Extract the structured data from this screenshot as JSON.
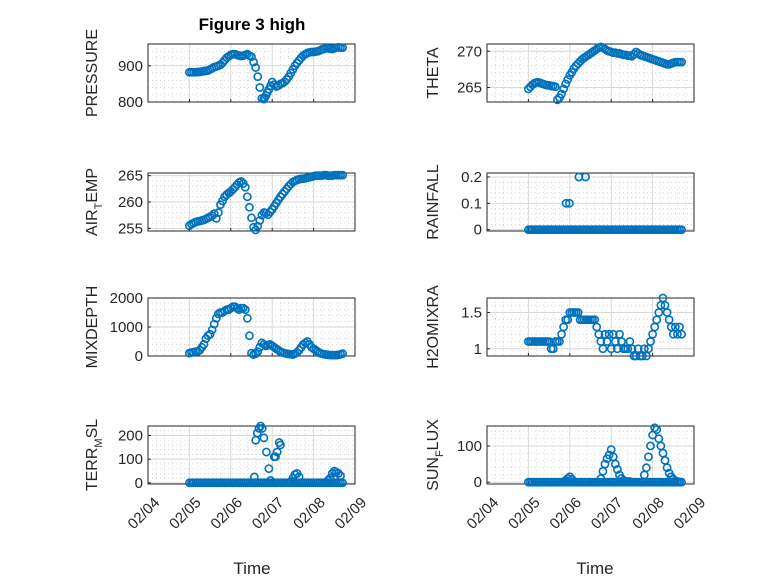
{
  "figure_title": "Figure 3 high",
  "xlabel": "Time",
  "x_tick_labels": [
    "02/04",
    "02/05",
    "02/06",
    "02/07",
    "02/08",
    "02/09"
  ],
  "colors": {
    "marker": "#0072BD",
    "axis": "#262626"
  },
  "chart_data": [
    {
      "type": "scatter",
      "name": "PRESSURE",
      "ylabel_parts": [
        "PRESSURE"
      ],
      "ylim": [
        800,
        960
      ],
      "yticks": [
        800,
        900
      ],
      "x": [
        1,
        1.05,
        1.1,
        1.15,
        1.2,
        1.25,
        1.3,
        1.35,
        1.4,
        1.45,
        1.5,
        1.55,
        1.6,
        1.65,
        1.7,
        1.75,
        1.8,
        1.85,
        1.9,
        1.95,
        2,
        2.05,
        2.1,
        2.15,
        2.2,
        2.25,
        2.3,
        2.35,
        2.4,
        2.45,
        2.5,
        2.55,
        2.6,
        2.65,
        2.7,
        2.75,
        2.8,
        2.82,
        2.85,
        2.88,
        2.92,
        2.96,
        3,
        3.05,
        3.1,
        3.15,
        3.2,
        3.25,
        3.3,
        3.35,
        3.4,
        3.45,
        3.5,
        3.55,
        3.6,
        3.65,
        3.7,
        3.75,
        3.8,
        3.85,
        3.9,
        3.95,
        4,
        4.05,
        4.1,
        4.15,
        4.2,
        4.25,
        4.3,
        4.35,
        4.4,
        4.45,
        4.5,
        4.55,
        4.6,
        4.65,
        4.7
      ],
      "y": [
        882,
        882,
        882,
        882,
        883,
        883,
        884,
        885,
        886,
        887,
        890,
        893,
        896,
        898,
        900,
        903,
        908,
        915,
        922,
        926,
        930,
        932,
        932,
        930,
        928,
        927,
        928,
        930,
        932,
        928,
        925,
        910,
        895,
        870,
        840,
        810,
        808,
        812,
        818,
        826,
        835,
        845,
        855,
        848,
        843,
        845,
        850,
        852,
        856,
        862,
        870,
        880,
        890,
        900,
        908,
        915,
        922,
        928,
        932,
        935,
        937,
        938,
        938,
        939,
        940,
        942,
        945,
        946,
        948,
        948,
        947,
        946,
        948,
        950,
        951,
        950,
        950
      ]
    },
    {
      "type": "scatter",
      "name": "THETA",
      "ylabel_parts": [
        "THETA"
      ],
      "ylim": [
        263,
        271
      ],
      "yticks": [
        265,
        270
      ],
      "x": [
        1,
        1.05,
        1.1,
        1.15,
        1.2,
        1.25,
        1.3,
        1.35,
        1.4,
        1.45,
        1.5,
        1.55,
        1.6,
        1.65,
        1.7,
        1.75,
        1.8,
        1.85,
        1.9,
        1.95,
        2,
        2.05,
        2.1,
        2.15,
        2.2,
        2.25,
        2.3,
        2.35,
        2.4,
        2.45,
        2.5,
        2.55,
        2.6,
        2.65,
        2.7,
        2.75,
        2.8,
        2.85,
        2.9,
        2.95,
        3,
        3.05,
        3.1,
        3.15,
        3.2,
        3.25,
        3.3,
        3.35,
        3.4,
        3.45,
        3.5,
        3.55,
        3.6,
        3.65,
        3.7,
        3.75,
        3.8,
        3.85,
        3.9,
        3.95,
        4,
        4.05,
        4.1,
        4.15,
        4.2,
        4.25,
        4.3,
        4.35,
        4.4,
        4.45,
        4.5,
        4.55,
        4.6,
        4.65,
        4.7
      ],
      "y": [
        264.8,
        265.1,
        265.4,
        265.6,
        265.7,
        265.7,
        265.6,
        265.5,
        265.4,
        265.3,
        265.3,
        265.2,
        265.2,
        265.1,
        263.3,
        263.6,
        264.1,
        264.8,
        265.5,
        266.1,
        266.7,
        267.1,
        267.6,
        268.0,
        268.3,
        268.6,
        268.9,
        269.1,
        269.3,
        269.5,
        269.7,
        269.9,
        270.1,
        270.3,
        270.5,
        270.6,
        270.5,
        270.3,
        270.1,
        270.0,
        269.9,
        269.8,
        269.8,
        269.7,
        269.7,
        269.6,
        269.5,
        269.5,
        269.4,
        269.4,
        269.3,
        269.6,
        269.9,
        269.7,
        269.5,
        269.4,
        269.3,
        269.2,
        269.1,
        269.0,
        268.9,
        268.8,
        268.7,
        268.6,
        268.5,
        268.4,
        268.3,
        268.2,
        268.2,
        268.3,
        268.4,
        268.5,
        268.5,
        268.5,
        268.5
      ]
    },
    {
      "type": "scatter",
      "name": "AIR_TEMP",
      "ylabel_parts": [
        "AIR",
        "T",
        "EMP"
      ],
      "ylim": [
        254.5,
        265.5
      ],
      "yticks": [
        255,
        260,
        265
      ],
      "x": [
        1,
        1.05,
        1.1,
        1.15,
        1.2,
        1.25,
        1.3,
        1.35,
        1.4,
        1.45,
        1.5,
        1.55,
        1.6,
        1.65,
        1.7,
        1.75,
        1.8,
        1.85,
        1.9,
        1.95,
        2,
        2.05,
        2.1,
        2.15,
        2.2,
        2.25,
        2.3,
        2.35,
        2.4,
        2.45,
        2.5,
        2.55,
        2.6,
        2.65,
        2.7,
        2.75,
        2.8,
        2.85,
        2.9,
        2.95,
        3,
        3.05,
        3.1,
        3.15,
        3.2,
        3.25,
        3.3,
        3.35,
        3.4,
        3.45,
        3.5,
        3.55,
        3.6,
        3.65,
        3.7,
        3.75,
        3.8,
        3.85,
        3.9,
        3.95,
        4,
        4.05,
        4.1,
        4.15,
        4.2,
        4.25,
        4.3,
        4.35,
        4.4,
        4.45,
        4.5,
        4.55,
        4.6,
        4.65,
        4.7
      ],
      "y": [
        255.5,
        255.8,
        256.0,
        256.2,
        256.3,
        256.4,
        256.5,
        256.6,
        256.8,
        257.0,
        257.2,
        257.4,
        257.8,
        256.9,
        258.0,
        259.5,
        260.2,
        261.0,
        261.4,
        261.7,
        262.0,
        262.4,
        262.8,
        263.3,
        263.7,
        263.9,
        263.5,
        262.8,
        261.0,
        259.0,
        257.0,
        255.2,
        254.7,
        255.4,
        256.5,
        257.5,
        258.0,
        257.9,
        257.6,
        258.1,
        258.6,
        259.2,
        259.8,
        260.4,
        261.0,
        261.5,
        262.0,
        262.5,
        263.0,
        263.4,
        263.8,
        264.0,
        264.2,
        264.3,
        264.4,
        264.4,
        264.5,
        264.6,
        264.7,
        264.8,
        264.9,
        265.0,
        265.0,
        265.0,
        265.0,
        265.1,
        265.1,
        265.0,
        265.0,
        265.0,
        265.1,
        265.1,
        265.1,
        265.1,
        265.1
      ]
    },
    {
      "type": "scatter",
      "name": "RAINFALL",
      "ylabel_parts": [
        "RAINFALL"
      ],
      "ylim": [
        -0.005,
        0.215
      ],
      "yticks": [
        0,
        0.1,
        0.2
      ],
      "x": [
        1.0,
        1.05,
        1.1,
        1.15,
        1.2,
        1.25,
        1.3,
        1.35,
        1.4,
        1.45,
        1.5,
        1.55,
        1.6,
        1.65,
        1.7,
        1.75,
        1.8,
        1.85,
        1.9,
        1.95,
        2.0,
        2.05,
        2.1,
        2.15,
        2.2,
        2.25,
        2.3,
        2.35,
        2.4,
        2.45,
        2.5,
        2.55,
        2.6,
        2.65,
        2.7,
        2.75,
        2.8,
        2.85,
        2.9,
        2.95,
        3.0,
        3.05,
        3.1,
        3.15,
        3.2,
        3.25,
        3.3,
        3.35,
        3.4,
        3.45,
        3.5,
        3.55,
        3.6,
        3.65,
        3.7,
        3.75,
        3.8,
        3.85,
        3.9,
        3.95,
        4.0,
        4.05,
        4.1,
        4.15,
        4.2,
        4.25,
        4.3,
        4.35,
        4.4,
        4.45,
        4.5,
        4.55,
        4.6,
        4.65,
        4.7,
        1.91,
        1.99,
        2.22,
        2.38
      ],
      "y": [
        0,
        0,
        0,
        0,
        0,
        0,
        0,
        0,
        0,
        0,
        0,
        0,
        0,
        0,
        0,
        0,
        0,
        0,
        0,
        0,
        0,
        0,
        0,
        0,
        0,
        0,
        0,
        0,
        0,
        0,
        0,
        0,
        0,
        0,
        0,
        0,
        0,
        0,
        0,
        0,
        0,
        0,
        0,
        0,
        0,
        0,
        0,
        0,
        0,
        0,
        0,
        0,
        0,
        0,
        0,
        0,
        0,
        0,
        0,
        0,
        0,
        0,
        0,
        0,
        0,
        0,
        0,
        0,
        0,
        0,
        0,
        0,
        0,
        0,
        0,
        0.1,
        0.1,
        0.2,
        0.2
      ]
    },
    {
      "type": "scatter",
      "name": "MIXDEPTH",
      "ylabel_parts": [
        "MIXDEPTH"
      ],
      "ylim": [
        0,
        2000
      ],
      "yticks": [
        0,
        1000,
        2000
      ],
      "x": [
        1,
        1.05,
        1.1,
        1.15,
        1.2,
        1.25,
        1.3,
        1.35,
        1.4,
        1.45,
        1.5,
        1.55,
        1.6,
        1.65,
        1.7,
        1.75,
        1.8,
        1.85,
        1.9,
        1.95,
        2,
        2.05,
        2.1,
        2.15,
        2.2,
        2.25,
        2.3,
        2.35,
        2.4,
        2.45,
        2.5,
        2.55,
        2.6,
        2.65,
        2.7,
        2.75,
        2.8,
        2.85,
        2.9,
        2.95,
        3,
        3.05,
        3.1,
        3.15,
        3.2,
        3.25,
        3.3,
        3.35,
        3.4,
        3.45,
        3.5,
        3.55,
        3.6,
        3.65,
        3.7,
        3.75,
        3.8,
        3.85,
        3.9,
        3.95,
        4,
        4.05,
        4.1,
        4.15,
        4.2,
        4.25,
        4.3,
        4.35,
        4.4,
        4.45,
        4.5,
        4.55,
        4.6,
        4.65,
        4.7
      ],
      "y": [
        100,
        120,
        130,
        150,
        160,
        200,
        300,
        400,
        600,
        700,
        750,
        900,
        1100,
        1300,
        1450,
        1500,
        1500,
        1550,
        1600,
        1600,
        1650,
        1700,
        1700,
        1650,
        1600,
        1650,
        1650,
        1600,
        1300,
        700,
        100,
        50,
        80,
        150,
        300,
        450,
        400,
        350,
        380,
        400,
        350,
        300,
        250,
        200,
        150,
        120,
        100,
        80,
        70,
        60,
        50,
        80,
        120,
        200,
        300,
        400,
        450,
        500,
        400,
        300,
        250,
        200,
        150,
        100,
        80,
        60,
        50,
        40,
        30,
        30,
        30,
        30,
        40,
        60,
        80
      ]
    },
    {
      "type": "scatter",
      "name": "H2OMIXRA",
      "ylabel_parts": [
        "H2OMIXRA"
      ],
      "ylim": [
        0.9,
        1.7
      ],
      "yticks": [
        1,
        1.5
      ],
      "x": [
        1,
        1.05,
        1.1,
        1.15,
        1.2,
        1.25,
        1.3,
        1.35,
        1.4,
        1.45,
        1.5,
        1.55,
        1.6,
        1.65,
        1.7,
        1.75,
        1.8,
        1.85,
        1.9,
        1.95,
        2,
        2.05,
        2.1,
        2.15,
        2.2,
        2.25,
        2.3,
        2.35,
        2.4,
        2.45,
        2.5,
        2.55,
        2.6,
        2.65,
        2.7,
        2.75,
        2.8,
        2.85,
        2.9,
        2.95,
        3,
        3.05,
        3.1,
        3.15,
        3.2,
        3.25,
        3.3,
        3.35,
        3.4,
        3.45,
        3.5,
        3.55,
        3.6,
        3.65,
        3.7,
        3.75,
        3.8,
        3.85,
        3.9,
        3.95,
        4,
        4.05,
        4.1,
        4.15,
        4.2,
        4.25,
        4.3,
        4.35,
        4.4,
        4.45,
        4.5,
        4.55,
        4.6,
        4.65,
        4.7
      ],
      "y": [
        1.1,
        1.1,
        1.1,
        1.1,
        1.1,
        1.1,
        1.1,
        1.1,
        1.1,
        1.1,
        1.1,
        1.0,
        1.0,
        1.1,
        1.1,
        1.1,
        1.2,
        1.3,
        1.4,
        1.4,
        1.5,
        1.5,
        1.5,
        1.5,
        1.5,
        1.4,
        1.4,
        1.4,
        1.4,
        1.4,
        1.4,
        1.4,
        1.4,
        1.3,
        1.2,
        1.1,
        1.0,
        1.2,
        1.1,
        1.2,
        1.0,
        1.2,
        1.1,
        1.0,
        1.2,
        1.1,
        1.0,
        1.0,
        1.0,
        1.1,
        1.0,
        0.9,
        0.9,
        1.0,
        0.9,
        0.9,
        1.0,
        0.9,
        1.0,
        1.1,
        1.2,
        1.3,
        1.4,
        1.5,
        1.6,
        1.7,
        1.6,
        1.5,
        1.4,
        1.3,
        1.2,
        1.3,
        1.2,
        1.3,
        1.2
      ]
    },
    {
      "type": "scatter",
      "name": "TERR_MSL",
      "ylabel_parts": [
        "TERR",
        "M",
        "SL"
      ],
      "ylim": [
        -5,
        240
      ],
      "yticks": [
        0,
        100,
        200
      ],
      "x": [
        1.0,
        1.05,
        1.1,
        1.15,
        1.2,
        1.25,
        1.3,
        1.35,
        1.4,
        1.45,
        1.5,
        1.55,
        1.6,
        1.65,
        1.7,
        1.75,
        1.8,
        1.85,
        1.9,
        1.95,
        2.0,
        2.05,
        2.1,
        2.15,
        2.2,
        2.25,
        2.3,
        2.35,
        2.4,
        2.45,
        2.5,
        2.55,
        2.6,
        2.65,
        2.7,
        2.75,
        2.8,
        2.85,
        2.9,
        2.95,
        3.0,
        3.05,
        3.1,
        3.15,
        3.2,
        3.25,
        3.3,
        3.35,
        3.4,
        3.45,
        3.5,
        3.55,
        3.6,
        3.65,
        3.7,
        3.75,
        3.8,
        3.85,
        3.9,
        3.95,
        4.0,
        4.05,
        4.1,
        4.15,
        4.2,
        4.25,
        4.3,
        4.35,
        4.4,
        4.45,
        4.5,
        4.55,
        4.6,
        4.65,
        4.7,
        2.57,
        2.6,
        2.64,
        2.68,
        2.72,
        2.76,
        2.8,
        2.86,
        2.92,
        2.96,
        3.05,
        3.08,
        3.12,
        3.17,
        3.2,
        3.45,
        3.5,
        3.55,
        3.6,
        3.65,
        4.35,
        4.4,
        4.45,
        4.5,
        4.55,
        4.6,
        4.65
      ],
      "y": [
        0,
        0,
        0,
        0,
        0,
        0,
        0,
        0,
        0,
        0,
        0,
        0,
        0,
        0,
        0,
        0,
        0,
        0,
        0,
        0,
        0,
        0,
        0,
        0,
        0,
        0,
        0,
        0,
        0,
        0,
        0,
        0,
        0,
        0,
        0,
        0,
        0,
        0,
        0,
        0,
        0,
        0,
        0,
        0,
        0,
        0,
        0,
        0,
        0,
        0,
        0,
        0,
        0,
        0,
        0,
        0,
        0,
        0,
        0,
        0,
        0,
        0,
        0,
        0,
        0,
        0,
        0,
        0,
        0,
        0,
        0,
        0,
        0,
        0,
        0,
        25,
        180,
        210,
        230,
        240,
        230,
        190,
        130,
        60,
        10,
        110,
        110,
        130,
        170,
        160,
        5,
        20,
        35,
        40,
        25,
        10,
        20,
        40,
        50,
        45,
        40,
        30
      ]
    },
    {
      "type": "scatter",
      "name": "SUN_FLUX",
      "ylabel_parts": [
        "SUN",
        "F",
        "LUX"
      ],
      "ylim": [
        -5,
        155
      ],
      "yticks": [
        0,
        100
      ],
      "x": [
        1.0,
        1.05,
        1.1,
        1.15,
        1.2,
        1.25,
        1.3,
        1.35,
        1.4,
        1.45,
        1.5,
        1.55,
        1.6,
        1.65,
        1.7,
        1.75,
        1.8,
        1.85,
        1.9,
        1.95,
        2.0,
        2.05,
        2.1,
        2.15,
        2.2,
        2.25,
        2.3,
        2.35,
        2.4,
        2.45,
        2.5,
        2.55,
        2.6,
        2.65,
        2.7,
        2.75,
        2.8,
        2.85,
        2.9,
        2.95,
        3.0,
        3.05,
        3.1,
        3.15,
        3.2,
        3.25,
        3.3,
        3.35,
        3.4,
        3.45,
        3.5,
        3.55,
        3.6,
        3.65,
        3.7,
        3.75,
        3.8,
        3.85,
        3.9,
        3.95,
        4.0,
        4.05,
        4.1,
        4.15,
        4.2,
        4.25,
        4.3,
        4.35,
        4.4,
        4.45,
        4.5,
        4.55,
        4.6,
        4.65,
        4.7,
        1.9,
        1.95,
        2.0,
        2.05,
        2.75,
        2.8,
        2.85,
        2.9,
        2.95,
        3.0,
        3.05,
        3.1,
        3.15,
        3.2,
        3.25,
        3.3,
        3.35,
        3.4,
        3.45,
        3.8,
        3.85,
        3.9,
        3.95,
        4.0,
        4.05,
        4.1,
        4.15,
        4.2,
        4.25,
        4.3,
        4.35,
        4.4,
        4.45,
        4.5,
        4.55,
        4.6,
        4.65
      ],
      "y": [
        0,
        0,
        0,
        0,
        0,
        0,
        0,
        0,
        0,
        0,
        0,
        0,
        0,
        0,
        0,
        0,
        0,
        0,
        0,
        0,
        0,
        0,
        0,
        0,
        0,
        0,
        0,
        0,
        0,
        0,
        0,
        0,
        0,
        0,
        0,
        0,
        0,
        0,
        0,
        0,
        0,
        0,
        0,
        0,
        0,
        0,
        0,
        0,
        0,
        0,
        0,
        0,
        0,
        0,
        0,
        0,
        0,
        0,
        0,
        0,
        0,
        0,
        0,
        0,
        0,
        0,
        0,
        0,
        0,
        0,
        0,
        0,
        0,
        0,
        0,
        5,
        10,
        15,
        8,
        10,
        30,
        50,
        65,
        75,
        90,
        70,
        50,
        35,
        20,
        10,
        5,
        2,
        2,
        2,
        20,
        40,
        70,
        100,
        130,
        150,
        145,
        120,
        100,
        80,
        60,
        40,
        25,
        15,
        8,
        4,
        2,
        1
      ]
    }
  ]
}
